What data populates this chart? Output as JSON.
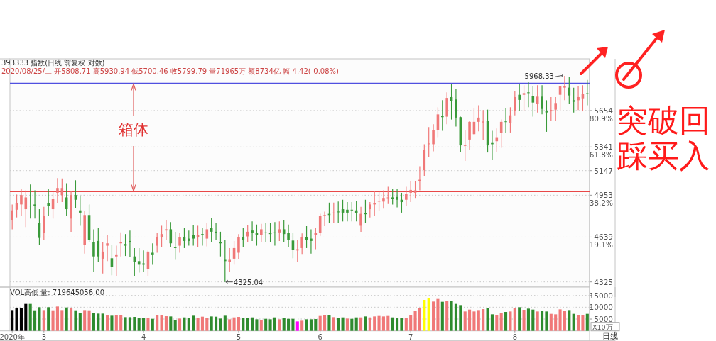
{
  "chart_data": [
    {
      "type": "candlestick",
      "title": "393333 指数(日线 前复权 对数)",
      "subtitle": "2020/08/25/二 开5808.71 高5930.94 低5700.46 收5799.79 量71965万 额8734亿 幅-4.42(-0.08%)",
      "categories": [
        null,
        null,
        null,
        null,
        null,
        null,
        null,
        null,
        null,
        null,
        null,
        null,
        null,
        null,
        null,
        null,
        null,
        null,
        null,
        null,
        null,
        null,
        null,
        null,
        null,
        null,
        null,
        null,
        null,
        null,
        null,
        null,
        null,
        null,
        null,
        null,
        null,
        null,
        null,
        null,
        null,
        null,
        null,
        null,
        null,
        null,
        null,
        null,
        null,
        null,
        null,
        null,
        null,
        null,
        null,
        null,
        null,
        null,
        null,
        null,
        null,
        null,
        null,
        null,
        null,
        null,
        null,
        null,
        null,
        null,
        null,
        null,
        null,
        null,
        null,
        null,
        null,
        null,
        null,
        null,
        null,
        null,
        null,
        null,
        null,
        null,
        null,
        null,
        null,
        null,
        null,
        null,
        null,
        null,
        null,
        null,
        null,
        null,
        null,
        null,
        null,
        null,
        null,
        null,
        null,
        null,
        null,
        null,
        null,
        null,
        null,
        null,
        null,
        null,
        null,
        null,
        null,
        null,
        null,
        null,
        null,
        null,
        null,
        null,
        null,
        null,
        null,
        null
      ],
      "ohlc": [
        [
          4766,
          4882,
          4696,
          4837
        ],
        [
          4842,
          4958,
          4784,
          4891
        ],
        [
          4882,
          5005,
          4793,
          4954
        ],
        [
          4846,
          4991,
          4713,
          4936
        ],
        [
          4873,
          5037,
          4775,
          4868
        ],
        [
          4882,
          4991,
          4775,
          4873
        ],
        [
          4740,
          4846,
          4582,
          4633
        ],
        [
          4670,
          4864,
          4619,
          4793
        ],
        [
          4891,
          5000,
          4793,
          4873
        ],
        [
          4846,
          4976,
          4775,
          4927
        ],
        [
          4972,
          5087,
          4891,
          5009
        ],
        [
          4954,
          5084,
          4900,
          5009
        ],
        [
          4936,
          5046,
          4793,
          4846
        ],
        [
          4775,
          4982,
          4678,
          4954
        ],
        [
          4954,
          5070,
          4855,
          4918
        ],
        [
          4837,
          4945,
          4722,
          4820
        ],
        [
          4585,
          4832,
          4521,
          4802
        ],
        [
          4802,
          4882,
          4602,
          4619
        ],
        [
          4602,
          4696,
          4394,
          4501
        ],
        [
          4611,
          4708,
          4465,
          4501
        ],
        [
          4485,
          4602,
          4383,
          4535
        ],
        [
          4577,
          4656,
          4468,
          4594
        ],
        [
          4488,
          4585,
          4370,
          4427
        ],
        [
          4501,
          4577,
          4362,
          4515
        ],
        [
          4594,
          4673,
          4501,
          4602
        ],
        [
          4589,
          4661,
          4504,
          4577
        ],
        [
          4611,
          4687,
          4498,
          4602
        ],
        [
          4501,
          4560,
          4362,
          4460
        ],
        [
          4468,
          4560,
          4389,
          4443
        ],
        [
          4452,
          4543,
          4394,
          4443
        ],
        [
          4411,
          4543,
          4362,
          4535
        ],
        [
          4527,
          4594,
          4443,
          4515
        ],
        [
          4577,
          4670,
          4527,
          4636
        ],
        [
          4636,
          4722,
          4568,
          4661
        ],
        [
          4687,
          4766,
          4619,
          4696
        ],
        [
          4696,
          4749,
          4568,
          4594
        ],
        [
          4568,
          4678,
          4477,
          4560
        ],
        [
          4577,
          4670,
          4527,
          4636
        ],
        [
          4636,
          4708,
          4560,
          4611
        ],
        [
          4628,
          4687,
          4577,
          4611
        ],
        [
          4653,
          4726,
          4577,
          4628
        ],
        [
          4636,
          4722,
          4568,
          4653
        ],
        [
          4661,
          4708,
          4577,
          4656
        ],
        [
          4628,
          4740,
          4572,
          4696
        ],
        [
          4705,
          4780,
          4602,
          4678
        ],
        [
          4678,
          4740,
          4619,
          4670
        ],
        [
          4602,
          4678,
          4501,
          4594
        ],
        [
          4477,
          4619,
          4325.04,
          4468
        ],
        [
          4460,
          4560,
          4394,
          4477
        ],
        [
          4485,
          4611,
          4443,
          4560
        ],
        [
          4527,
          4661,
          4485,
          4636
        ],
        [
          4639,
          4708,
          4568,
          4619
        ],
        [
          4644,
          4726,
          4602,
          4678
        ],
        [
          4687,
          4754,
          4611,
          4670
        ],
        [
          4670,
          4731,
          4577,
          4653
        ],
        [
          4653,
          4736,
          4602,
          4696
        ],
        [
          4673,
          4743,
          4602,
          4670
        ],
        [
          4670,
          4743,
          4602,
          4661
        ],
        [
          4673,
          4749,
          4577,
          4670
        ],
        [
          4673,
          4754,
          4611,
          4696
        ],
        [
          4696,
          4761,
          4602,
          4661
        ],
        [
          4670,
          4731,
          4568,
          4619
        ],
        [
          4614,
          4670,
          4488,
          4548
        ],
        [
          4543,
          4619,
          4460,
          4552
        ],
        [
          4560,
          4666,
          4518,
          4636
        ],
        [
          4639,
          4719,
          4560,
          4619
        ],
        [
          4628,
          4696,
          4521,
          4611
        ],
        [
          4653,
          4708,
          4552,
          4670
        ],
        [
          4670,
          4811,
          4648,
          4793
        ],
        [
          4797,
          4828,
          4719,
          4802
        ],
        [
          4811,
          4896,
          4743,
          4802
        ],
        [
          4815,
          4896,
          4743,
          4820
        ],
        [
          4828,
          4904,
          4743,
          4825
        ],
        [
          4846,
          4918,
          4754,
          4820
        ],
        [
          4842,
          4900,
          4754,
          4820
        ],
        [
          4842,
          4900,
          4754,
          4837
        ],
        [
          4837,
          4909,
          4754,
          4815
        ],
        [
          4722,
          4864,
          4678,
          4811
        ],
        [
          4815,
          4918,
          4743,
          4808
        ],
        [
          4846,
          4900,
          4784,
          4882
        ],
        [
          4882,
          4982,
          4793,
          4891
        ],
        [
          4904,
          4982,
          4832,
          4909
        ],
        [
          4904,
          4991,
          4850,
          4932
        ],
        [
          4932,
          5018,
          4886,
          4936
        ],
        [
          4936,
          5005,
          4882,
          4927
        ],
        [
          4940,
          5005,
          4860,
          4918
        ],
        [
          4918,
          4972,
          4820,
          4900
        ],
        [
          4918,
          5018,
          4873,
          4963
        ],
        [
          4972,
          5065,
          4900,
          4994
        ],
        [
          4972,
          5065,
          4932,
          4991
        ],
        [
          5065,
          5182,
          4991,
          5074
        ],
        [
          5150,
          5364,
          5106,
          5318
        ],
        [
          5364,
          5510,
          5256,
          5370
        ],
        [
          5364,
          5534,
          5305,
          5483
        ],
        [
          5483,
          5683,
          5423,
          5620
        ],
        [
          5606,
          5746,
          5477,
          5596
        ],
        [
          5600,
          5817,
          5534,
          5767
        ],
        [
          5774,
          5896,
          5575,
          5738
        ],
        [
          5753,
          5849,
          5514,
          5592
        ],
        [
          5596,
          5600,
          5299,
          5354
        ],
        [
          5350,
          5483,
          5226,
          5358
        ],
        [
          5403,
          5565,
          5315,
          5555
        ],
        [
          5449,
          5672,
          5445,
          5555
        ],
        [
          5555,
          5700,
          5473,
          5592
        ],
        [
          5550,
          5658,
          5397,
          5558
        ],
        [
          5565,
          5662,
          5295,
          5354
        ],
        [
          5374,
          5477,
          5236,
          5364
        ],
        [
          5389,
          5497,
          5299,
          5423
        ],
        [
          5457,
          5575,
          5334,
          5555
        ],
        [
          5559,
          5674,
          5457,
          5555
        ],
        [
          5544,
          5683,
          5463,
          5612
        ],
        [
          5654,
          5832,
          5612,
          5774
        ],
        [
          5795,
          5896,
          5647,
          5749
        ],
        [
          5795,
          5882,
          5647,
          5810
        ],
        [
          5817,
          5914,
          5683,
          5810
        ],
        [
          5785,
          5875,
          5600,
          5725
        ],
        [
          5711,
          5882,
          5637,
          5778
        ],
        [
          5778,
          5882,
          5620,
          5668
        ],
        [
          5647,
          5746,
          5469,
          5637
        ],
        [
          5647,
          5774,
          5565,
          5658
        ],
        [
          5662,
          5774,
          5565,
          5721
        ],
        [
          5795,
          5875,
          5658,
          5871
        ],
        [
          5860,
          5968.33,
          5746,
          5871
        ],
        [
          5860,
          5958,
          5717,
          5789
        ],
        [
          5746,
          5860,
          5637,
          5732
        ],
        [
          5746,
          5871,
          5658,
          5774
        ],
        [
          5763,
          5882,
          5647,
          5802
        ],
        [
          5808.71,
          5930.94,
          5700.46,
          5799.79
        ]
      ],
      "colors": [
        "#f07878",
        "#f07878",
        "#f07878",
        "#f07878",
        "#3a9a3a",
        "#3a9a3a",
        "#3a9a3a",
        "#f07878",
        "#3a9a3a",
        "#f07878",
        "#f07878",
        "#f07878",
        "#3a9a3a",
        "#f07878",
        "#3a9a3a",
        "#3a9a3a",
        "#f07878",
        "#3a9a3a",
        "#3a9a3a",
        "#3a9a3a",
        "#f07878",
        "#f07878",
        "#3a9a3a",
        "#f07878",
        "#f07878",
        "#3a9a3a",
        "#3a9a3a",
        "#3a9a3a",
        "#3a9a3a",
        "#3a9a3a",
        "#f07878",
        "#3a9a3a",
        "#f07878",
        "#f07878",
        "#f07878",
        "#3a9a3a",
        "#3a9a3a",
        "#f07878",
        "#3a9a3a",
        "#3a9a3a",
        "#3a9a3a",
        "#f07878",
        "#3a9a3a",
        "#f07878",
        "#3a9a3a",
        "#3a9a3a",
        "#3a9a3a",
        "#3a9a3a",
        "#f07878",
        "#f07878",
        "#f07878",
        "#3a9a3a",
        "#f07878",
        "#3a9a3a",
        "#3a9a3a",
        "#f07878",
        "#3a9a3a",
        "#3a9a3a",
        "#3a9a3a",
        "#f07878",
        "#3a9a3a",
        "#3a9a3a",
        "#3a9a3a",
        "#f07878",
        "#f07878",
        "#3a9a3a",
        "#3a9a3a",
        "#f07878",
        "#f07878",
        "#f07878",
        "#3a9a3a",
        "#f07878",
        "#3a9a3a",
        "#3a9a3a",
        "#3a9a3a",
        "#3a9a3a",
        "#3a9a3a",
        "#f07878",
        "#3a9a3a",
        "#f07878",
        "#f07878",
        "#f07878",
        "#f07878",
        "#f07878",
        "#3a9a3a",
        "#3a9a3a",
        "#3a9a3a",
        "#f07878",
        "#f07878",
        "#f07878",
        "#f07878",
        "#f07878",
        "#f07878",
        "#f07878",
        "#f07878",
        "#3a9a3a",
        "#f07878",
        "#3a9a3a",
        "#3a9a3a",
        "#3a9a3a",
        "#f07878",
        "#f07878",
        "#f07878",
        "#f07878",
        "#f07878",
        "#3a9a3a",
        "#3a9a3a",
        "#f07878",
        "#f07878",
        "#3a9a3a",
        "#f07878",
        "#f07878",
        "#3a9a3a",
        "#f07878",
        "#3a9a3a",
        "#3a9a3a",
        "#f07878",
        "#3a9a3a",
        "#3a9a3a",
        "#f07878",
        "#f07878",
        "#f07878",
        "#f07878",
        "#3a9a3a",
        "#3a9a3a",
        "#f07878",
        "#f07878",
        "#3a9a3a"
      ],
      "log": true,
      "ylim": [
        4290,
        6130
      ],
      "yticks": [
        4325,
        {
          "value": 4639,
          "label": "4639\n19.1%"
        },
        {
          "value": 4953,
          "label": "4953\n38.2%"
        },
        5147,
        {
          "value": 5341,
          "label": "5341\n61.8%"
        },
        {
          "value": 5654,
          "label": "5654\n80.9%"
        }
      ],
      "grid": "y",
      "tick_labels": "y",
      "ref_lines": [
        {
          "axis": "y",
          "value": 5900,
          "color": "#5050e0"
        },
        {
          "axis": "y",
          "value": 4980,
          "color": "#e84848"
        }
      ],
      "annotations": [
        {
          "text": "箱体",
          "y": 5900
        },
        "突破回踩买入",
        "5968.33",
        "4325.04"
      ]
    },
    {
      "type": "bar",
      "title": "VOL高低 量: 719645056.00",
      "ylabel": "X10万",
      "categories": [
        "2020年",
        null,
        null,
        null,
        null,
        null,
        null,
        "3",
        null,
        null,
        null,
        null,
        null,
        null,
        null,
        null,
        null,
        null,
        null,
        null,
        null,
        null,
        null,
        null,
        null,
        null,
        null,
        null,
        null,
        "4",
        null,
        null,
        null,
        null,
        null,
        null,
        null,
        null,
        null,
        null,
        null,
        null,
        null,
        null,
        null,
        null,
        null,
        null,
        null,
        null,
        "5",
        null,
        null,
        null,
        null,
        null,
        null,
        null,
        null,
        null,
        null,
        null,
        null,
        null,
        null,
        null,
        null,
        null,
        "6",
        null,
        null,
        null,
        null,
        null,
        null,
        null,
        null,
        null,
        null,
        null,
        null,
        null,
        null,
        null,
        null,
        null,
        null,
        null,
        "7",
        null,
        null,
        null,
        null,
        null,
        null,
        null,
        null,
        null,
        null,
        null,
        null,
        null,
        null,
        null,
        null,
        null,
        null,
        null,
        null,
        null,
        null,
        "8",
        null,
        null,
        null,
        null,
        null,
        null,
        null,
        null,
        null,
        null,
        null,
        null,
        null,
        null,
        null,
        null
      ],
      "values": [
        8800,
        9500,
        9800,
        11400,
        11400,
        8700,
        10000,
        8800,
        10000,
        8700,
        10300,
        8800,
        9900,
        9700,
        8700,
        7500,
        8800,
        8700,
        7700,
        7300,
        7300,
        6500,
        6400,
        6700,
        6600,
        5800,
        5800,
        5900,
        5300,
        5400,
        5400,
        5100,
        6800,
        6500,
        6200,
        6100,
        4500,
        5200,
        5700,
        5600,
        6400,
        5500,
        6000,
        5500,
        6100,
        6000,
        5200,
        6400,
        4900,
        5700,
        5900,
        5500,
        5600,
        5700,
        4900,
        4700,
        5100,
        4900,
        5700,
        4900,
        5500,
        5100,
        5100,
        4000,
        4300,
        4900,
        4900,
        5000,
        6300,
        6600,
        6500,
        5800,
        5500,
        5700,
        5200,
        5100,
        5700,
        5700,
        6100,
        5700,
        6100,
        6300,
        6100,
        6300,
        5700,
        5300,
        5300,
        5300,
        6500,
        8500,
        9700,
        13100,
        13900,
        12400,
        13500,
        12300,
        12600,
        12700,
        11400,
        10900,
        8200,
        9000,
        8200,
        8800,
        9200,
        9800,
        7000,
        6800,
        7600,
        8000,
        8200,
        9700,
        10000,
        8900,
        9400,
        9000,
        8200,
        8500,
        8200,
        7200,
        7000,
        9100,
        8400,
        8800,
        7200,
        6600,
        6800,
        7200
      ],
      "colors": [
        "#000000",
        "#000000",
        "#000000",
        "#000000",
        "#2e8b2e",
        "#2e8b2e",
        "#2e8b2e",
        "#f07878",
        "#2e8b2e",
        "#f07878",
        "#f07878",
        "#f07878",
        "#2e8b2e",
        "#f07878",
        "#2e8b2e",
        "#2e8b2e",
        "#f07878",
        "#f07878",
        "#2e8b2e",
        "#2e8b2e",
        "#2e8b2e",
        "#f07878",
        "#2e8b2e",
        "#f07878",
        "#f07878",
        "#2e8b2e",
        "#2e8b2e",
        "#2e8b2e",
        "#2e8b2e",
        "#2e8b2e",
        "#f07878",
        "#2e8b2e",
        "#f07878",
        "#f07878",
        "#f07878",
        "#2e8b2e",
        "#2e8b2e",
        "#f07878",
        "#2e8b2e",
        "#2e8b2e",
        "#2e8b2e",
        "#f07878",
        "#f07878",
        "#f07878",
        "#2e8b2e",
        "#2e8b2e",
        "#2e8b2e",
        "#2e8b2e",
        "#f07878",
        "#f07878",
        "#f07878",
        "#2e8b2e",
        "#2e8b2e",
        "#2e8b2e",
        "#2e8b2e",
        "#f07878",
        "#2e8b2e",
        "#2e8b2e",
        "#2e8b2e",
        "#f07878",
        "#2e8b2e",
        "#2e8b2e",
        "#2e8b2e",
        "#ff00ff",
        "#f07878",
        "#2e8b2e",
        "#2e8b2e",
        "#2e8b2e",
        "#f07878",
        "#f07878",
        "#2e8b2e",
        "#f07878",
        "#2e8b2e",
        "#2e8b2e",
        "#f07878",
        "#2e8b2e",
        "#2e8b2e",
        "#f07878",
        "#2e8b2e",
        "#f07878",
        "#f07878",
        "#f07878",
        "#f07878",
        "#f07878",
        "#2e8b2e",
        "#2e8b2e",
        "#2e8b2e",
        "#f07878",
        "#f07878",
        "#f07878",
        "#f07878",
        "#ffff00",
        "#ffff00",
        "#f07878",
        "#f07878",
        "#2e8b2e",
        "#f07878",
        "#2e8b2e",
        "#2e8b2e",
        "#2e8b2e",
        "#f07878",
        "#f07878",
        "#f07878",
        "#f07878",
        "#f07878",
        "#2e8b2e",
        "#2e8b2e",
        "#f07878",
        "#f07878",
        "#2e8b2e",
        "#f07878",
        "#f07878",
        "#2e8b2e",
        "#f07878",
        "#2e8b2e",
        "#2e8b2e",
        "#f07878",
        "#2e8b2e",
        "#2e8b2e",
        "#f07878",
        "#f07878",
        "#f07878",
        "#f07878",
        "#2e8b2e",
        "#2e8b2e",
        "#f07878",
        "#f07878",
        "#2e8b2e"
      ],
      "ylim": [
        0,
        18500
      ],
      "yticks": [
        5000,
        10000,
        15000
      ],
      "grid": "y",
      "annotations": [
        "日线"
      ]
    }
  ]
}
